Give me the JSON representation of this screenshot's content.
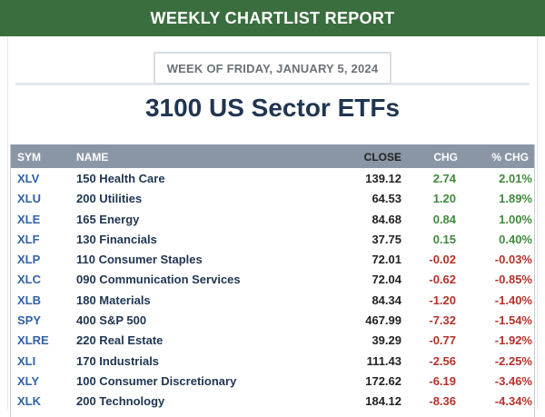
{
  "banner": {
    "title": "WEEKLY CHARTLIST REPORT"
  },
  "report": {
    "week_label": "WEEK OF FRIDAY, JANUARY 5, 2024",
    "title": "3100 US Sector ETFs"
  },
  "table": {
    "headers": {
      "sym": "SYM",
      "name": "NAME",
      "close": "CLOSE",
      "chg": "CHG",
      "pct": "% CHG"
    },
    "rows": [
      {
        "sym": "XLV",
        "name": "150 Health Care",
        "close": "139.12",
        "chg": "2.74",
        "pct": "2.01%",
        "dir": "pos"
      },
      {
        "sym": "XLU",
        "name": "200 Utilities",
        "close": "64.53",
        "chg": "1.20",
        "pct": "1.89%",
        "dir": "pos"
      },
      {
        "sym": "XLE",
        "name": "165 Energy",
        "close": "84.68",
        "chg": "0.84",
        "pct": "1.00%",
        "dir": "pos"
      },
      {
        "sym": "XLF",
        "name": "130 Financials",
        "close": "37.75",
        "chg": "0.15",
        "pct": "0.40%",
        "dir": "pos"
      },
      {
        "sym": "XLP",
        "name": "110 Consumer Staples",
        "close": "72.01",
        "chg": "-0.02",
        "pct": "-0.03%",
        "dir": "neg"
      },
      {
        "sym": "XLC",
        "name": "090 Communication Services",
        "close": "72.04",
        "chg": "-0.62",
        "pct": "-0.85%",
        "dir": "neg"
      },
      {
        "sym": "XLB",
        "name": "180 Materials",
        "close": "84.34",
        "chg": "-1.20",
        "pct": "-1.40%",
        "dir": "neg"
      },
      {
        "sym": "SPY",
        "name": "400 S&P 500",
        "close": "467.99",
        "chg": "-7.32",
        "pct": "-1.54%",
        "dir": "neg"
      },
      {
        "sym": "XLRE",
        "name": "220 Real Estate",
        "close": "39.29",
        "chg": "-0.77",
        "pct": "-1.92%",
        "dir": "neg"
      },
      {
        "sym": "XLI",
        "name": "170 Industrials",
        "close": "111.43",
        "chg": "-2.56",
        "pct": "-2.25%",
        "dir": "neg"
      },
      {
        "sym": "XLY",
        "name": "100 Consumer Discretionary",
        "close": "172.62",
        "chg": "-6.19",
        "pct": "-3.46%",
        "dir": "neg"
      },
      {
        "sym": "XLK",
        "name": "200 Technology",
        "close": "184.12",
        "chg": "-8.36",
        "pct": "-4.34%",
        "dir": "neg"
      }
    ]
  },
  "colors": {
    "banner": "#3b6e3f",
    "header_row": "#8b96a5",
    "title": "#1f3551",
    "symbol": "#2f62a8",
    "positive": "#3f8a3a",
    "negative": "#b5322b"
  }
}
